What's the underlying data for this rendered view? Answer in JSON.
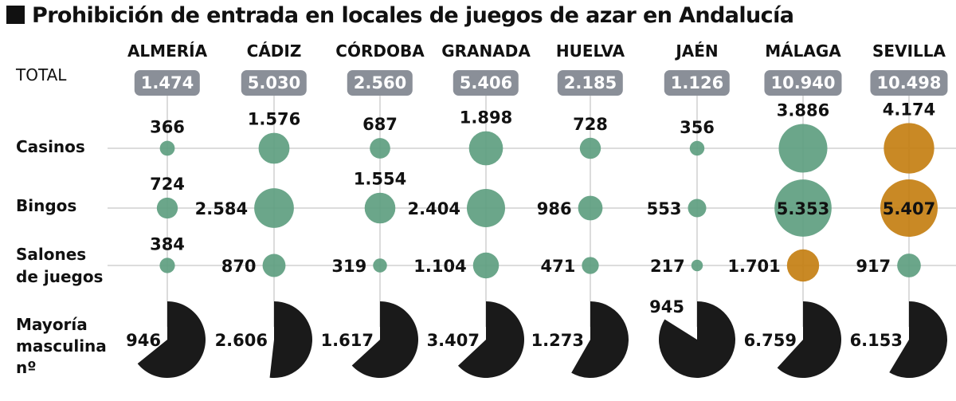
{
  "title": "Prohibición de entrada en locales de juegos de azar en Andalucía",
  "colors": {
    "green": "#5e9e80",
    "orange": "#c47f12",
    "dark": "#1a1a1a",
    "pill": "#8a8f98",
    "grid": "#c8c8c8"
  },
  "row_labels": {
    "total": "TOTAL",
    "casinos": "Casinos",
    "bingos": "Bingos",
    "salones_1": "Salones",
    "salones_2": "de juegos",
    "mayoria_1": "Mayoría",
    "mayoria_2": "masculina",
    "mayoria_3": "nº"
  },
  "chart_data": {
    "type": "bubble-matrix",
    "title": "Prohibición de entrada en locales de juegos de azar en Andalucía",
    "categories": [
      "ALMERÍA",
      "CÁDIZ",
      "CÓRDOBA",
      "GRANADA",
      "HUELVA",
      "JAÉN",
      "MÁLAGA",
      "SEVILLA"
    ],
    "totals": [
      "1.474",
      "5.030",
      "2.560",
      "5.406",
      "2.185",
      "1.126",
      "10.940",
      "10.498"
    ],
    "series": [
      {
        "name": "Casinos",
        "values": [
          366,
          1576,
          687,
          1898,
          728,
          356,
          3886,
          4174
        ],
        "labels": [
          "366",
          "1.576",
          "687",
          "1.898",
          "728",
          "356",
          "3.886",
          "4.174"
        ],
        "highlight": [
          false,
          false,
          false,
          false,
          false,
          false,
          false,
          true
        ]
      },
      {
        "name": "Bingos",
        "values": [
          724,
          2584,
          1554,
          2404,
          986,
          553,
          5353,
          5407
        ],
        "labels": [
          "724",
          "2.584",
          "1.554",
          "2.404",
          "986",
          "553",
          "5.353",
          "5.407"
        ],
        "highlight": [
          false,
          false,
          false,
          false,
          false,
          false,
          false,
          true
        ]
      },
      {
        "name": "Salones de juegos",
        "values": [
          384,
          870,
          319,
          1104,
          471,
          217,
          1701,
          917
        ],
        "labels": [
          "384",
          "870",
          "319",
          "1.104",
          "471",
          "217",
          "1.701",
          "917"
        ],
        "highlight": [
          false,
          false,
          false,
          false,
          false,
          false,
          true,
          false
        ]
      }
    ],
    "male_majority": {
      "name": "Mayoría masculina nº",
      "values": [
        946,
        2606,
        1617,
        3407,
        1273,
        945,
        6759,
        6153
      ],
      "labels": [
        "946",
        "2.606",
        "1.617",
        "3.407",
        "1.273",
        "945",
        "6.759",
        "6.153"
      ]
    }
  }
}
